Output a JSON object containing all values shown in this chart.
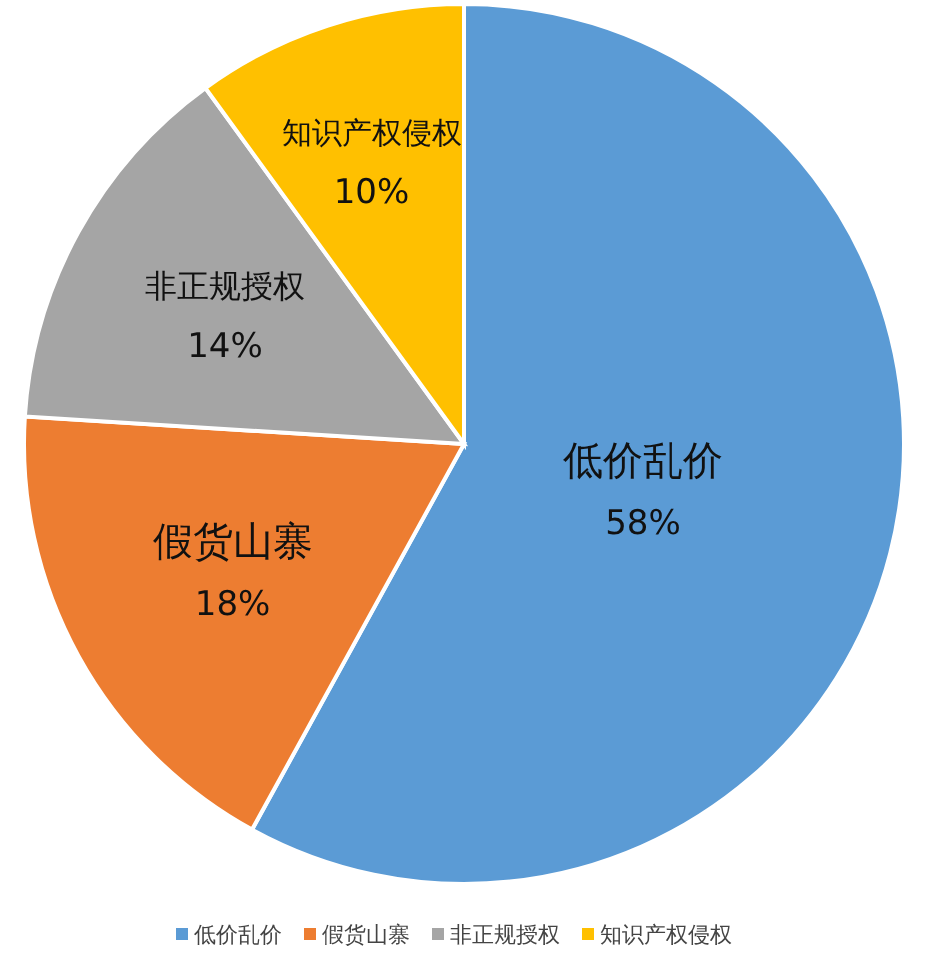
{
  "chart_data": {
    "type": "pie",
    "categories": [
      "低价乱价",
      "假货山寨",
      "非正规授权",
      "知识产权侵权"
    ],
    "values": [
      58,
      18,
      14,
      10
    ],
    "colors": [
      "#5b9bd5",
      "#ed7d31",
      "#a5a5a5",
      "#ffc000"
    ],
    "value_labels": [
      "58%",
      "18%",
      "14%",
      "10%"
    ],
    "legend": "bottom"
  }
}
